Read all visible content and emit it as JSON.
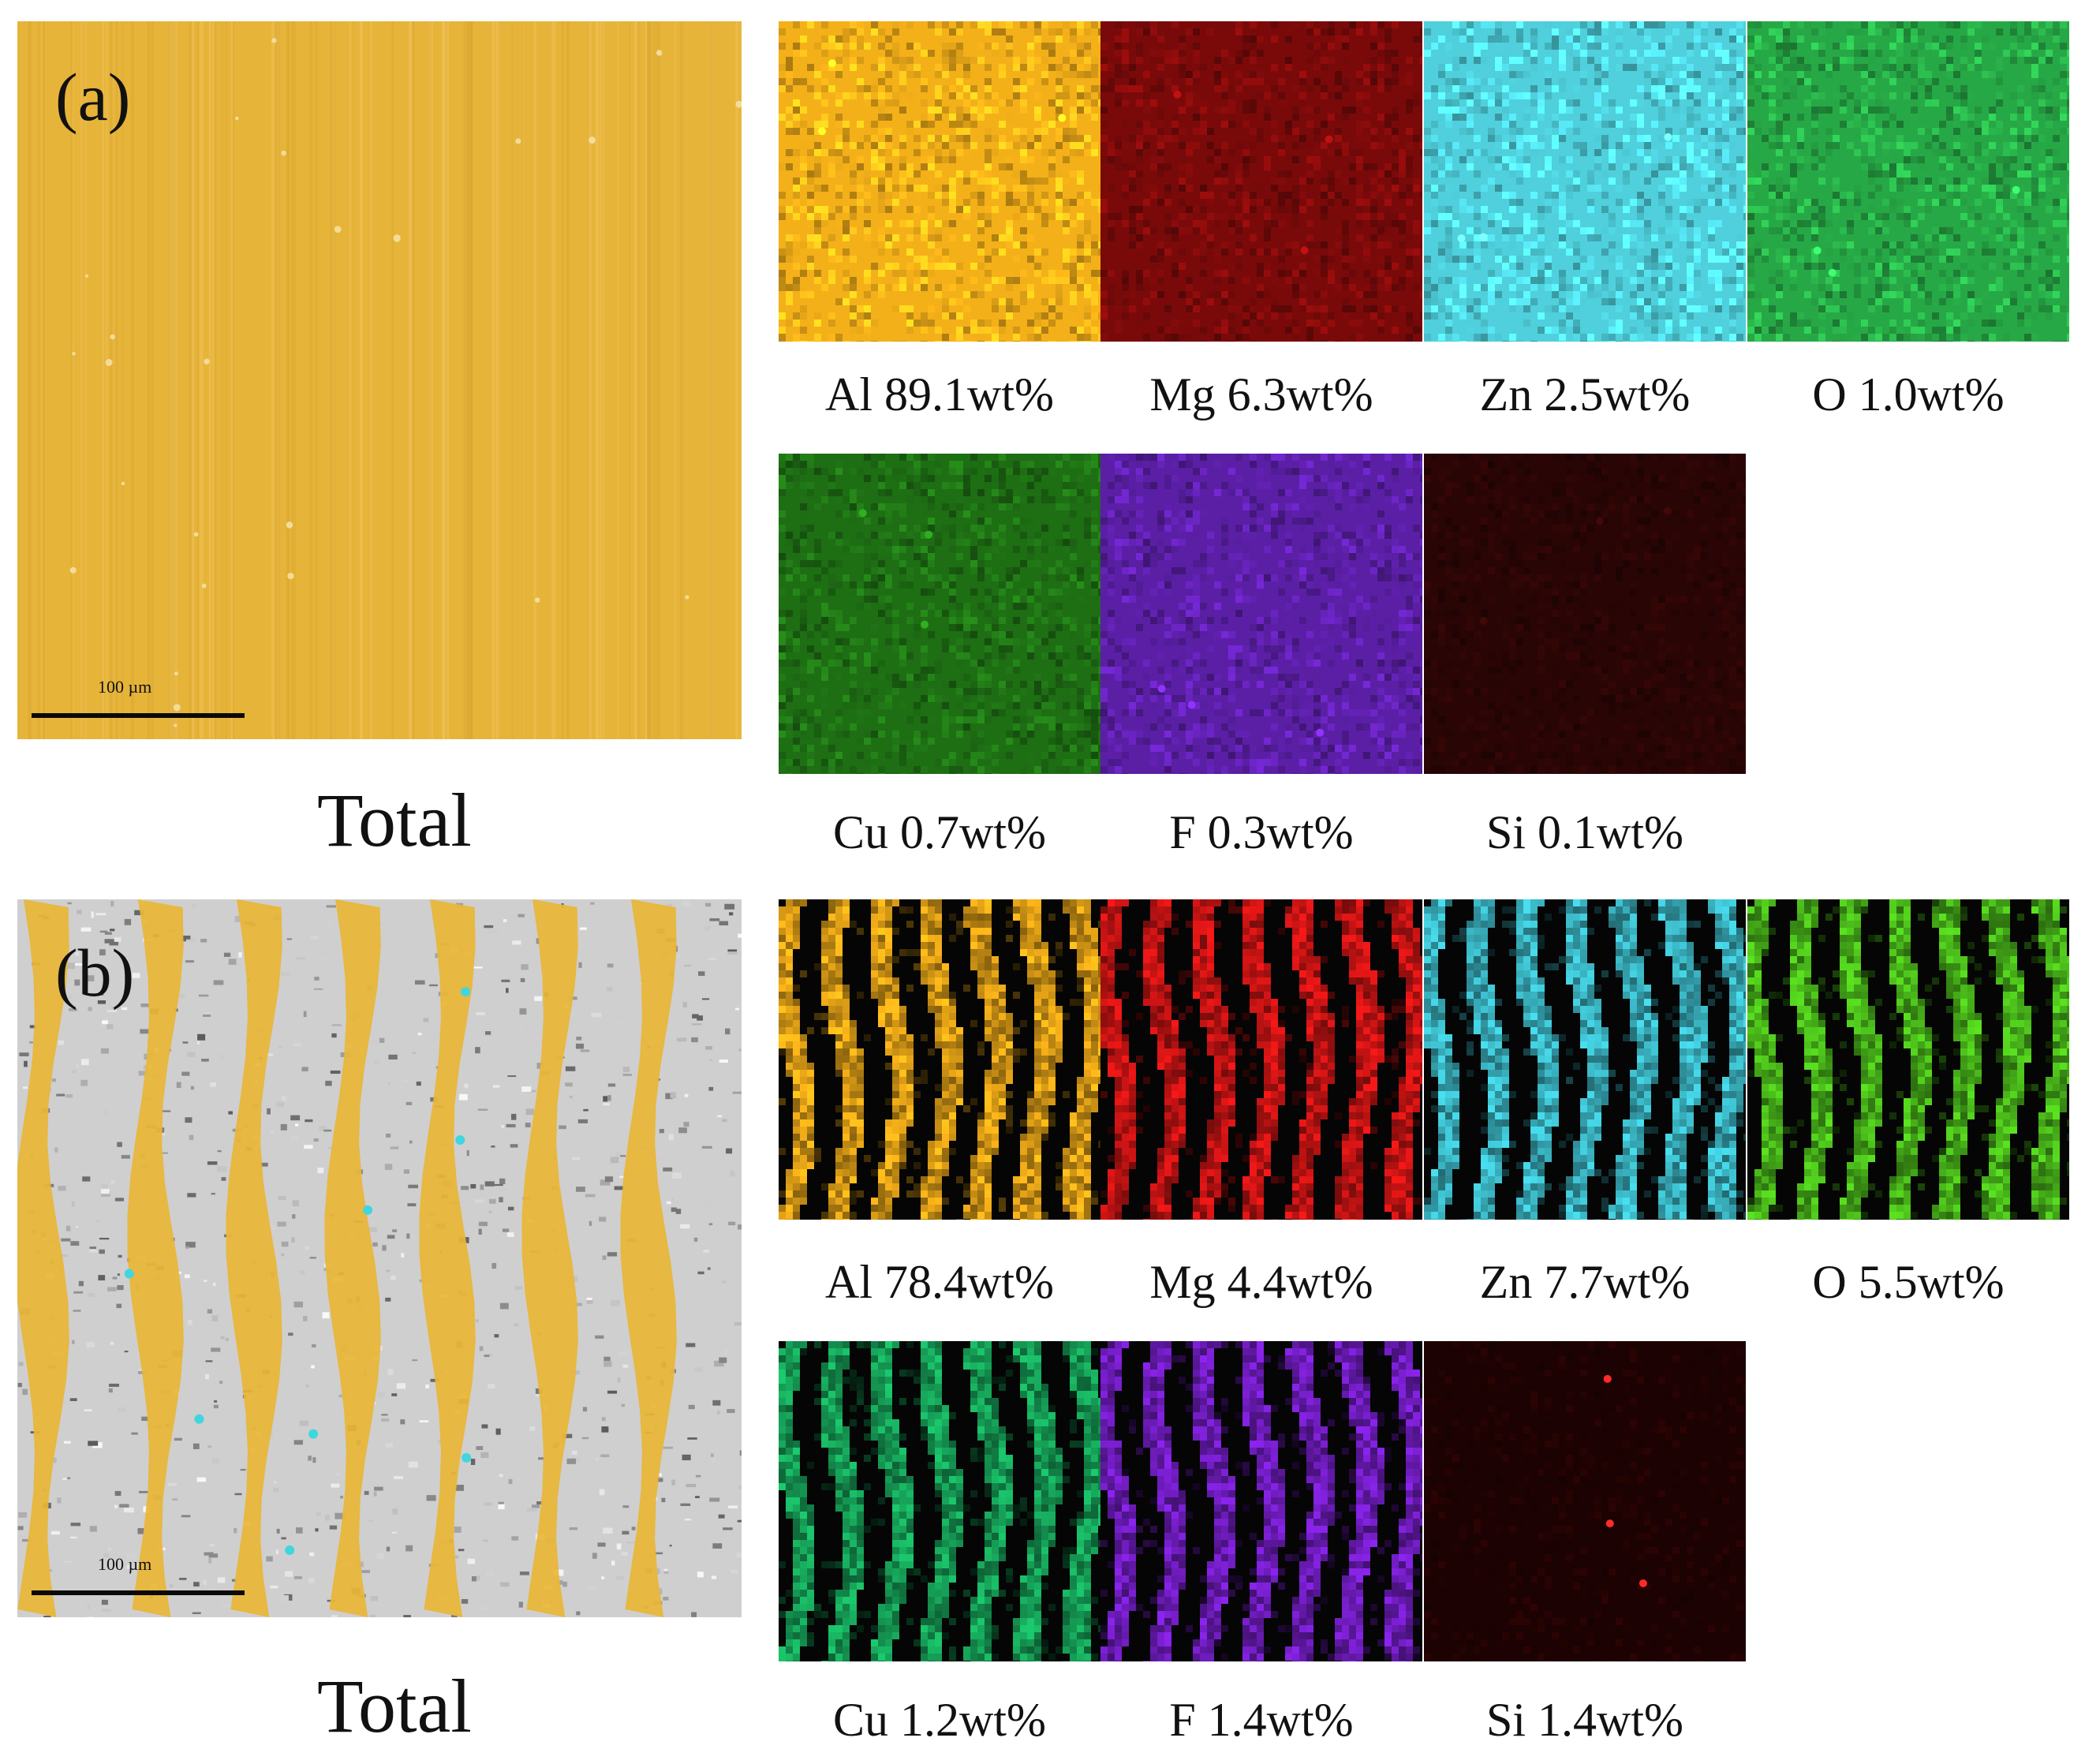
{
  "figure": {
    "panel_a": {
      "label": "(a)",
      "scale": "100 µm",
      "total_label": "Total",
      "maps": [
        {
          "element": "Al 89.1wt%",
          "color": "#f4b019",
          "pattern": "uniform"
        },
        {
          "element": "Mg 6.3wt%",
          "color": "#7a0a0a",
          "pattern": "uniform"
        },
        {
          "element": "Zn 2.5wt%",
          "color": "#4fd0dc",
          "pattern": "uniform"
        },
        {
          "element": "O 1.0wt%",
          "color": "#27a846",
          "pattern": "uniform"
        },
        {
          "element": "Cu 0.7wt%",
          "color": "#1e6e14",
          "pattern": "uniform"
        },
        {
          "element": "F 0.3wt%",
          "color": "#5b1fa6",
          "pattern": "uniform"
        },
        {
          "element": "Si 0.1wt%",
          "color": "#2a0505",
          "pattern": "uniform"
        }
      ]
    },
    "panel_b": {
      "label": "(b)",
      "scale": "100 µm",
      "total_label": "Total",
      "maps": [
        {
          "element": "Al 78.4wt%",
          "color": "#f2ad18",
          "pattern": "stripes"
        },
        {
          "element": "Mg 4.4wt%",
          "color": "#d81515",
          "pattern": "stripes"
        },
        {
          "element": "Zn 7.7wt%",
          "color": "#3fc3d2",
          "pattern": "stripes"
        },
        {
          "element": "O 5.5wt%",
          "color": "#4fc61c",
          "pattern": "stripes"
        },
        {
          "element": "Cu 1.2wt%",
          "color": "#18b060",
          "pattern": "stripes"
        },
        {
          "element": "F 1.4wt%",
          "color": "#7a1fd0",
          "pattern": "stripes"
        },
        {
          "element": "Si 1.4wt%",
          "color": "#1c0202",
          "pattern": "sparse"
        }
      ]
    }
  }
}
